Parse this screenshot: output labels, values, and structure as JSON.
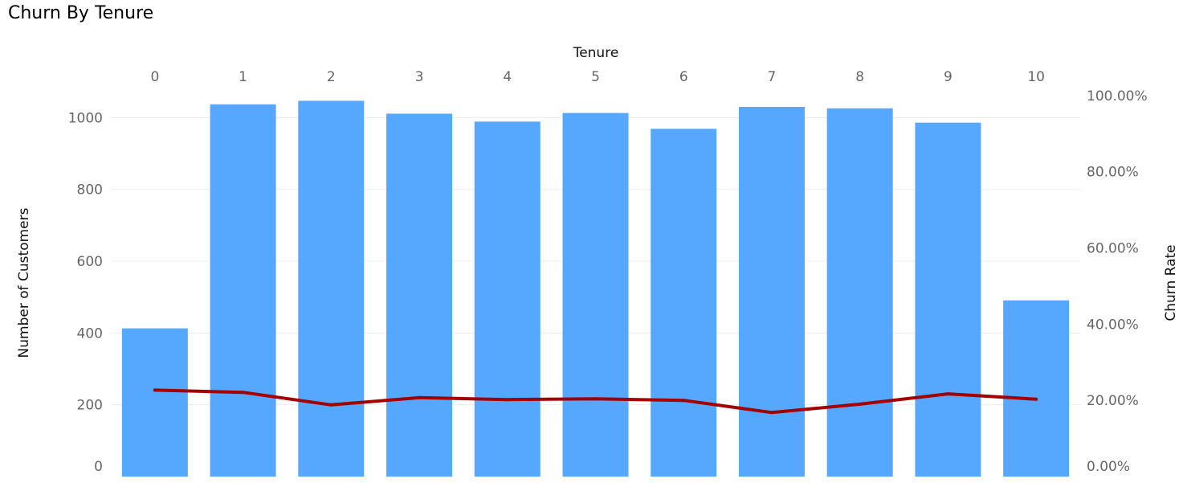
{
  "title": "Churn By Tenure",
  "chart_data": {
    "type": "bar",
    "title": "Churn By Tenure",
    "xlabel": "Tenure",
    "x_axis_position": "top",
    "categories": [
      "0",
      "1",
      "2",
      "3",
      "4",
      "5",
      "6",
      "7",
      "8",
      "9",
      "10"
    ],
    "series": [
      {
        "name": "Number of Customers",
        "type": "bar",
        "axis": "left",
        "color": "#55a8fd",
        "values": [
          413,
          1037,
          1047,
          1011,
          989,
          1013,
          969,
          1030,
          1026,
          986,
          491
        ]
      },
      {
        "name": "Churn Rate",
        "type": "line",
        "axis": "right",
        "color": "#a50000",
        "values": [
          22.7,
          22.1,
          18.8,
          20.7,
          20.2,
          20.4,
          20.0,
          16.8,
          19.0,
          21.7,
          20.3
        ]
      }
    ],
    "ylabel": "Number of Customers",
    "ylim": [
      0,
      1030
    ],
    "yticks": [
      0,
      200,
      400,
      600,
      800,
      1000
    ],
    "y2label": "Churn Rate",
    "y2lim": [
      0,
      97
    ],
    "y2ticks": [
      0,
      20,
      40,
      60,
      80,
      100
    ],
    "y2tick_labels": [
      "0.00%",
      "20.00%",
      "40.00%",
      "60.00%",
      "80.00%",
      "100.00%"
    ],
    "grid": true
  }
}
